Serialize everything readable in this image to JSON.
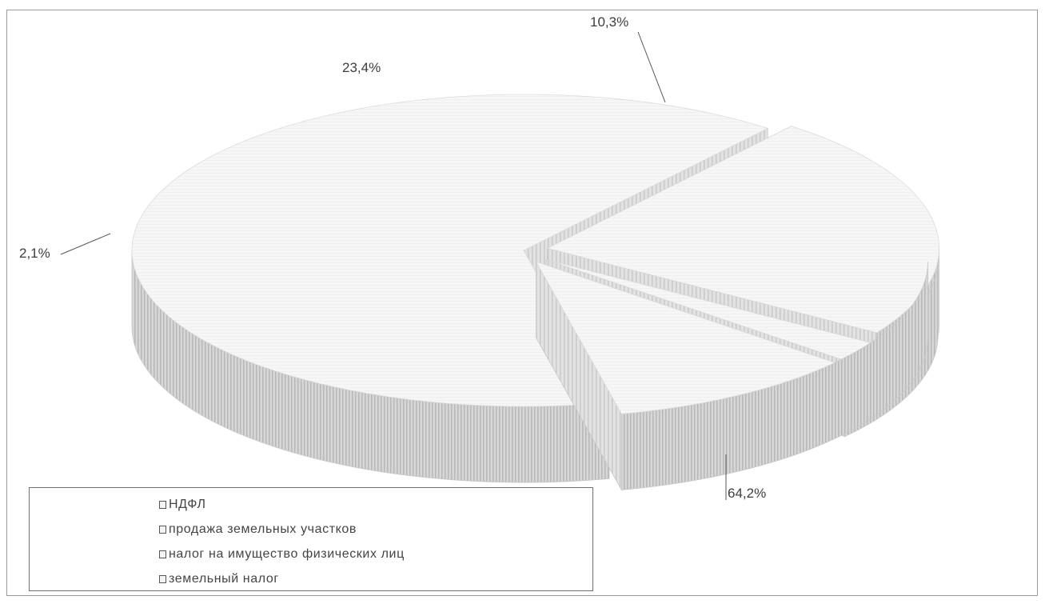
{
  "chart_data": {
    "type": "pie",
    "variant": "3d-exploded",
    "categories": [
      "НДФЛ",
      "продажа земельных участков",
      "налог на имущество физических лиц",
      "земельный налог"
    ],
    "values": [
      64.2,
      23.4,
      2.1,
      10.3
    ],
    "data_labels": [
      "64,2%",
      "23,4%",
      "2,1%",
      "10,3%"
    ],
    "legend_position": "bottom-left",
    "colors": {
      "top_face": "#fbfbfb",
      "side_face": "#d2d2d2",
      "side_stripe": "#bdbdbd",
      "edge": "#c8c8c8"
    }
  },
  "legend": {
    "items": [
      "НДФЛ",
      "продажа земельных участков",
      "налог на имущество физических лиц",
      "земельный налог"
    ]
  }
}
